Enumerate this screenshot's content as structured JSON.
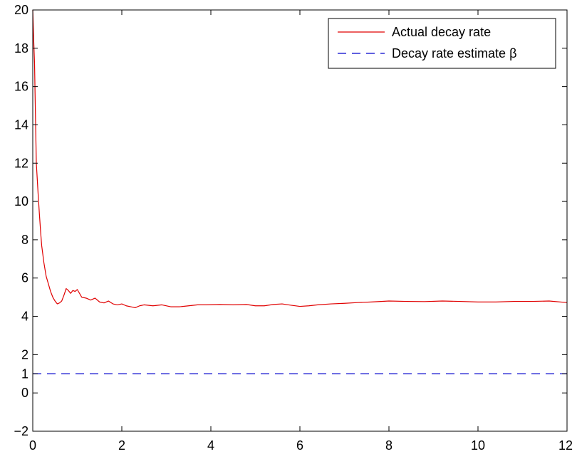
{
  "chart_data": {
    "type": "line",
    "title": "",
    "xlabel": "",
    "ylabel": "",
    "xlim": [
      0,
      12
    ],
    "ylim": [
      -2,
      20
    ],
    "xticks": [
      0,
      2,
      4,
      6,
      8,
      10,
      12
    ],
    "yticks": [
      -2,
      0,
      1,
      2,
      4,
      6,
      8,
      10,
      12,
      14,
      16,
      18,
      20
    ],
    "grid": false,
    "legend_position": "top-right",
    "series": [
      {
        "name": "Actual decay rate",
        "color": "#e00000",
        "style": "solid",
        "points": [
          [
            0.0,
            20.0
          ],
          [
            0.02,
            18.5
          ],
          [
            0.04,
            17.2
          ],
          [
            0.06,
            14.5
          ],
          [
            0.08,
            12.0
          ],
          [
            0.1,
            11.2
          ],
          [
            0.12,
            10.4
          ],
          [
            0.15,
            9.3
          ],
          [
            0.18,
            8.3
          ],
          [
            0.2,
            7.7
          ],
          [
            0.25,
            6.8
          ],
          [
            0.3,
            6.1
          ],
          [
            0.35,
            5.7
          ],
          [
            0.4,
            5.3
          ],
          [
            0.45,
            5.0
          ],
          [
            0.5,
            4.8
          ],
          [
            0.55,
            4.65
          ],
          [
            0.6,
            4.7
          ],
          [
            0.65,
            4.8
          ],
          [
            0.7,
            5.1
          ],
          [
            0.75,
            5.45
          ],
          [
            0.8,
            5.35
          ],
          [
            0.85,
            5.2
          ],
          [
            0.9,
            5.35
          ],
          [
            0.95,
            5.3
          ],
          [
            1.0,
            5.4
          ],
          [
            1.05,
            5.2
          ],
          [
            1.1,
            5.0
          ],
          [
            1.2,
            4.95
          ],
          [
            1.3,
            4.85
          ],
          [
            1.4,
            4.95
          ],
          [
            1.5,
            4.75
          ],
          [
            1.6,
            4.7
          ],
          [
            1.7,
            4.8
          ],
          [
            1.8,
            4.65
          ],
          [
            1.9,
            4.6
          ],
          [
            2.0,
            4.65
          ],
          [
            2.1,
            4.55
          ],
          [
            2.2,
            4.5
          ],
          [
            2.3,
            4.45
          ],
          [
            2.4,
            4.55
          ],
          [
            2.5,
            4.6
          ],
          [
            2.7,
            4.55
          ],
          [
            2.9,
            4.6
          ],
          [
            3.1,
            4.5
          ],
          [
            3.3,
            4.5
          ],
          [
            3.5,
            4.55
          ],
          [
            3.7,
            4.6
          ],
          [
            3.9,
            4.6
          ],
          [
            4.2,
            4.62
          ],
          [
            4.5,
            4.6
          ],
          [
            4.8,
            4.62
          ],
          [
            5.0,
            4.55
          ],
          [
            5.2,
            4.55
          ],
          [
            5.4,
            4.62
          ],
          [
            5.6,
            4.65
          ],
          [
            5.8,
            4.58
          ],
          [
            6.0,
            4.52
          ],
          [
            6.2,
            4.55
          ],
          [
            6.4,
            4.6
          ],
          [
            6.7,
            4.65
          ],
          [
            7.0,
            4.68
          ],
          [
            7.3,
            4.72
          ],
          [
            7.6,
            4.75
          ],
          [
            8.0,
            4.8
          ],
          [
            8.4,
            4.78
          ],
          [
            8.8,
            4.77
          ],
          [
            9.2,
            4.8
          ],
          [
            9.6,
            4.78
          ],
          [
            10.0,
            4.75
          ],
          [
            10.4,
            4.75
          ],
          [
            10.8,
            4.78
          ],
          [
            11.2,
            4.78
          ],
          [
            11.6,
            4.8
          ],
          [
            12.0,
            4.72
          ]
        ]
      },
      {
        "name": "Decay rate estimate β",
        "color": "#0000cc",
        "style": "dashed",
        "points": [
          [
            0.0,
            1.0
          ],
          [
            12.0,
            1.0
          ]
        ]
      }
    ]
  }
}
